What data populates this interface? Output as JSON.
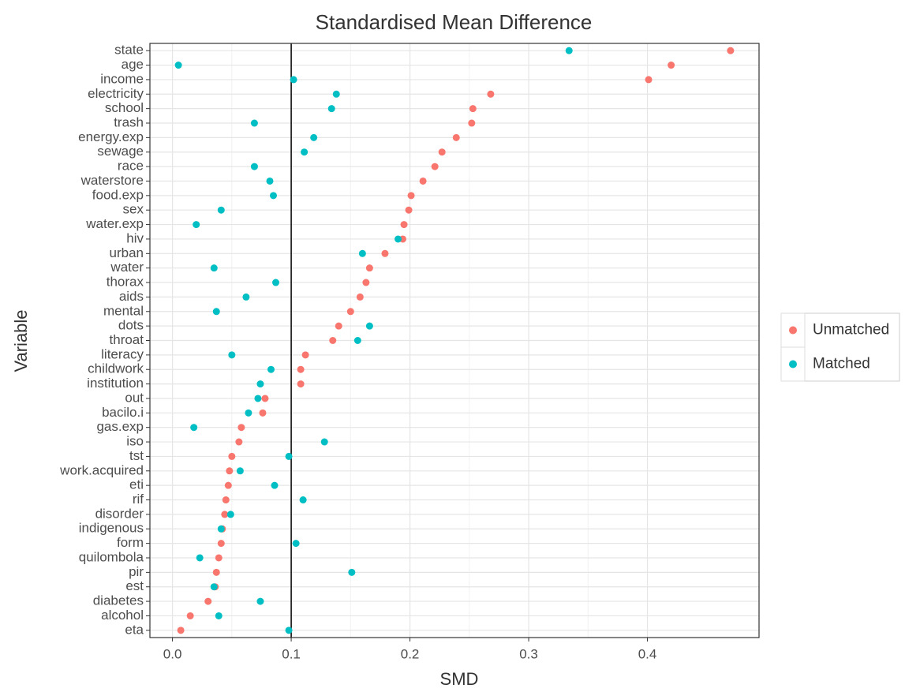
{
  "chart_data": {
    "type": "dot",
    "title": "Standardised Mean Difference",
    "x_label": "SMD",
    "y_label": "Variable",
    "categories": [
      "state",
      "age",
      "income",
      "electricity",
      "school",
      "trash",
      "energy.exp",
      "sewage",
      "race",
      "waterstore",
      "food.exp",
      "sex",
      "water.exp",
      "hiv",
      "urban",
      "water",
      "thorax",
      "aids",
      "mental",
      "dots",
      "throat",
      "literacy",
      "childwork",
      "institution",
      "out",
      "bacilo.i",
      "gas.exp",
      "iso",
      "tst",
      "work.acquired",
      "eti",
      "rif",
      "disorder",
      "indigenous",
      "form",
      "quilombola",
      "pir",
      "est",
      "diabetes",
      "alcohol",
      "eta"
    ],
    "series": [
      {
        "name": "Unmatched",
        "color": "#F8766D",
        "values": [
          0.47,
          0.42,
          0.401,
          0.268,
          0.253,
          0.252,
          0.239,
          0.227,
          0.221,
          0.211,
          0.201,
          0.199,
          0.195,
          0.194,
          0.179,
          0.166,
          0.163,
          0.158,
          0.15,
          0.14,
          0.135,
          0.112,
          0.108,
          0.108,
          0.078,
          0.076,
          0.058,
          0.056,
          0.05,
          0.048,
          0.047,
          0.045,
          0.044,
          0.042,
          0.041,
          0.039,
          0.037,
          0.036,
          0.03,
          0.015,
          0.007
        ]
      },
      {
        "name": "Matched",
        "color": "#00BFC4",
        "values": [
          0.334,
          0.005,
          0.102,
          0.138,
          0.134,
          0.069,
          0.119,
          0.111,
          0.069,
          0.082,
          0.085,
          0.041,
          0.02,
          0.19,
          0.16,
          0.035,
          0.087,
          0.062,
          0.037,
          0.166,
          0.156,
          0.05,
          0.083,
          0.074,
          0.072,
          0.064,
          0.018,
          0.128,
          0.098,
          0.057,
          0.086,
          0.11,
          0.049,
          0.041,
          0.104,
          0.023,
          0.151,
          0.035,
          0.074,
          0.039,
          0.098
        ]
      }
    ],
    "xlim": [
      -0.019,
      0.494
    ],
    "xticks": [
      {
        "value": 0,
        "label": "0.0"
      },
      0.1,
      0.2,
      0.3,
      0.4
    ],
    "vline": 0.1,
    "grid": true,
    "legend": "right"
  }
}
